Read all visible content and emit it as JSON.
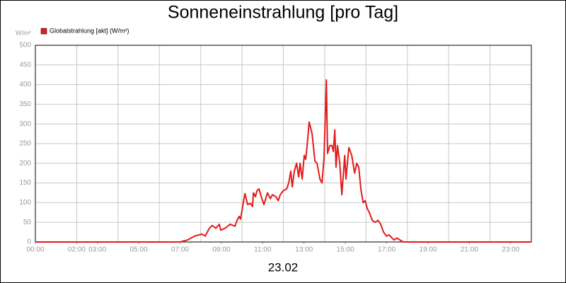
{
  "chart_data": {
    "type": "line",
    "title": "Sonneneinstrahlung [pro Tag]",
    "y_unit": "W/m²",
    "xlabel": "23.02",
    "xlim": [
      0,
      24
    ],
    "ylim": [
      0,
      500
    ],
    "yticks": [
      0,
      50,
      100,
      150,
      200,
      250,
      300,
      350,
      400,
      450,
      500
    ],
    "xticks": [
      {
        "value": 0,
        "label": "00:00"
      },
      {
        "value": 2,
        "label": "02:00"
      },
      {
        "value": 3,
        "label": "03:00"
      },
      {
        "value": 5,
        "label": "05:00"
      },
      {
        "value": 7,
        "label": "07:00"
      },
      {
        "value": 9,
        "label": "09:00"
      },
      {
        "value": 11,
        "label": "11:00"
      },
      {
        "value": 13,
        "label": "13:00"
      },
      {
        "value": 15,
        "label": "15:00"
      },
      {
        "value": 17,
        "label": "17:00"
      },
      {
        "value": 19,
        "label": "19:00"
      },
      {
        "value": 21,
        "label": "21:00"
      },
      {
        "value": 23,
        "label": "23:00"
      }
    ],
    "xgrid": [
      2,
      4,
      6,
      8,
      10,
      12,
      14,
      16,
      18,
      20,
      22
    ],
    "grid": true,
    "x": [
      0,
      7.0,
      7.36,
      7.71,
      8.05,
      8.22,
      8.42,
      8.56,
      8.73,
      8.9,
      8.97,
      9.18,
      9.42,
      9.66,
      9.76,
      9.86,
      9.93,
      10.03,
      10.14,
      10.27,
      10.41,
      10.51,
      10.55,
      10.65,
      10.72,
      10.82,
      10.96,
      11.06,
      11.23,
      11.37,
      11.47,
      11.64,
      11.75,
      11.85,
      11.99,
      12.16,
      12.26,
      12.36,
      12.43,
      12.53,
      12.64,
      12.74,
      12.81,
      12.91,
      13.01,
      13.08,
      13.15,
      13.25,
      13.39,
      13.53,
      13.63,
      13.77,
      13.87,
      13.97,
      14.08,
      14.14,
      14.25,
      14.35,
      14.42,
      14.49,
      14.55,
      14.62,
      14.73,
      14.83,
      14.97,
      15.03,
      15.17,
      15.31,
      15.45,
      15.55,
      15.65,
      15.75,
      15.86,
      15.96,
      16.06,
      16.16,
      16.3,
      16.44,
      16.58,
      16.71,
      16.85,
      16.99,
      17.12,
      17.26,
      17.36,
      17.5,
      17.64,
      17.81,
      24
    ],
    "series": [
      {
        "name": "Globalstrahlung [akt] (W/m²)",
        "color": "#e31b1b",
        "values": [
          0,
          0,
          5,
          15,
          20,
          15,
          35,
          42,
          35,
          45,
          30,
          35,
          45,
          40,
          55,
          65,
          58,
          90,
          123,
          95,
          98,
          90,
          125,
          115,
          130,
          135,
          110,
          95,
          125,
          110,
          120,
          115,
          105,
          120,
          130,
          135,
          150,
          180,
          140,
          180,
          200,
          165,
          200,
          160,
          220,
          210,
          245,
          305,
          275,
          205,
          200,
          160,
          150,
          215,
          412,
          225,
          245,
          245,
          230,
          285,
          190,
          245,
          200,
          120,
          220,
          160,
          240,
          220,
          175,
          200,
          190,
          135,
          100,
          105,
          85,
          75,
          55,
          50,
          55,
          45,
          25,
          15,
          18,
          10,
          5,
          10,
          5,
          0,
          0
        ]
      }
    ]
  }
}
